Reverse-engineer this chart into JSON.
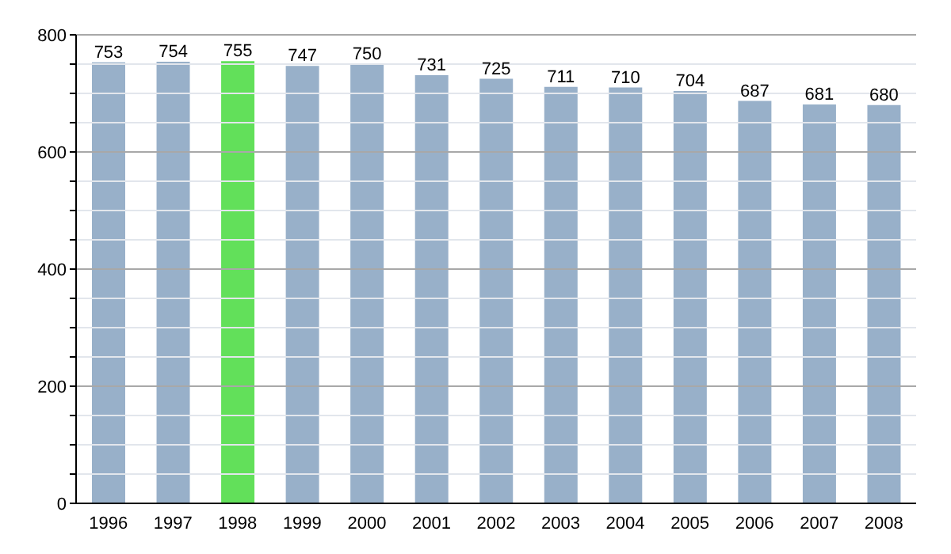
{
  "chart_data": {
    "type": "bar",
    "categories": [
      "1996",
      "1997",
      "1998",
      "1999",
      "2000",
      "2001",
      "2002",
      "2003",
      "2004",
      "2005",
      "2006",
      "2007",
      "2008"
    ],
    "values": [
      753,
      754,
      755,
      747,
      750,
      731,
      725,
      711,
      710,
      704,
      687,
      681,
      680
    ],
    "colors": [
      "#98b0c9",
      "#98b0c9",
      "#62e05a",
      "#98b0c9",
      "#98b0c9",
      "#98b0c9",
      "#98b0c9",
      "#98b0c9",
      "#98b0c9",
      "#98b0c9",
      "#98b0c9",
      "#98b0c9",
      "#98b0c9"
    ],
    "ylim": [
      0,
      800
    ],
    "yticks": [
      0,
      {
        "value": 50,
        "label": null
      },
      {
        "value": 100,
        "label": null
      },
      {
        "value": 150,
        "label": null
      },
      200,
      {
        "value": 250,
        "label": null
      },
      {
        "value": 300,
        "label": null
      },
      {
        "value": 350,
        "label": null
      },
      400,
      {
        "value": 450,
        "label": null
      },
      {
        "value": 500,
        "label": null
      },
      {
        "value": 550,
        "label": null
      },
      600,
      {
        "value": 650,
        "label": null
      },
      {
        "value": 700,
        "label": null
      },
      {
        "value": 750,
        "label": null
      },
      800
    ],
    "grid": "y",
    "data_labels": true
  }
}
